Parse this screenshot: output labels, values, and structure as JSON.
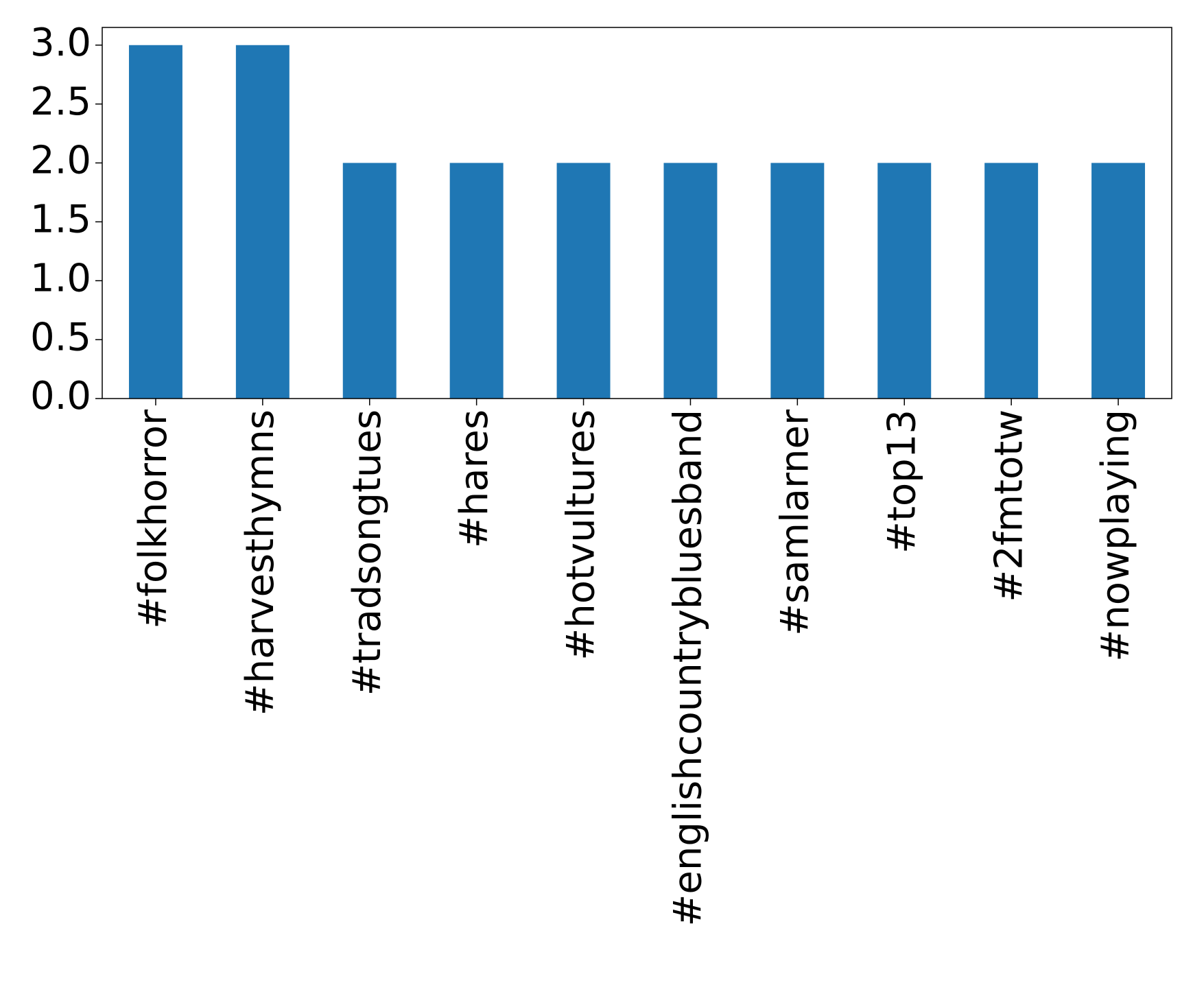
{
  "chart_data": {
    "type": "bar",
    "categories": [
      "#folkhorror",
      "#harvesthymns",
      "#tradsongtues",
      "#hares",
      "#hotvultures",
      "#englishcountrybluesband",
      "#samlarner",
      "#top13",
      "#2fmtotw",
      "#nowplaying"
    ],
    "values": [
      3,
      3,
      2,
      2,
      2,
      2,
      2,
      2,
      2,
      2
    ],
    "color": "#1f77b4",
    "ylim": [
      0,
      3.15
    ],
    "yticks": [
      {
        "value": 0,
        "label": "0.0"
      },
      0.5,
      {
        "value": 1,
        "label": "1.0"
      },
      1.5,
      {
        "value": 2,
        "label": "2.0"
      },
      2.5,
      {
        "value": 3,
        "label": "3.0"
      }
    ],
    "grid": false
  }
}
